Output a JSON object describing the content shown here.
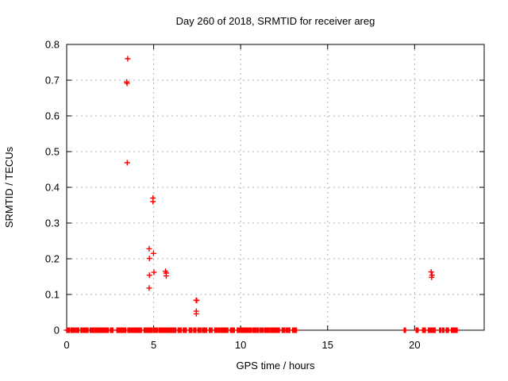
{
  "chart_data": {
    "type": "scatter",
    "title": "Day 260 of 2018, SRMTID for receiver areg",
    "xlabel": "GPS time / hours",
    "ylabel": "SRMTID / TECUs",
    "xlim": [
      0,
      24
    ],
    "ylim": [
      0,
      0.8
    ],
    "xticks": [
      0,
      5,
      10,
      15,
      20
    ],
    "yticks": [
      0,
      0.1,
      0.2,
      0.3,
      0.4,
      0.5,
      0.6,
      0.7,
      0.8
    ],
    "grid": true,
    "legend": "none",
    "marker": "plus",
    "marker_color": "#ff0000",
    "grid_color": "#b0b0b0",
    "border_color": "#000000",
    "series_name": "SRMTID",
    "points": [
      [
        3.51,
        0.76
      ],
      [
        3.45,
        0.695
      ],
      [
        3.47,
        0.691
      ],
      [
        3.48,
        0.469
      ],
      [
        4.96,
        0.37
      ],
      [
        4.96,
        0.36
      ],
      [
        4.74,
        0.228
      ],
      [
        4.99,
        0.215
      ],
      [
        4.76,
        0.201
      ],
      [
        5.02,
        0.162
      ],
      [
        4.76,
        0.154
      ],
      [
        5.68,
        0.165
      ],
      [
        5.72,
        0.16
      ],
      [
        5.72,
        0.152
      ],
      [
        4.74,
        0.118
      ],
      [
        7.44,
        0.084
      ],
      [
        7.48,
        0.083
      ],
      [
        7.45,
        0.053
      ],
      [
        7.45,
        0.046
      ],
      [
        20.95,
        0.163
      ],
      [
        21.0,
        0.154
      ],
      [
        20.98,
        0.148
      ]
    ],
    "zero_value_segments": [
      [
        0.0,
        0.18
      ],
      [
        0.26,
        0.45
      ],
      [
        0.52,
        0.7
      ],
      [
        0.81,
        1.23
      ],
      [
        1.34,
        1.64
      ],
      [
        1.69,
        1.84
      ],
      [
        1.9,
        2.15
      ],
      [
        2.2,
        2.4
      ],
      [
        2.52,
        2.66
      ],
      [
        2.88,
        3.12
      ],
      [
        3.18,
        3.4
      ],
      [
        3.52,
        4.3
      ],
      [
        4.45,
        4.92
      ],
      [
        4.99,
        5.22
      ],
      [
        5.3,
        6.28
      ],
      [
        6.4,
        6.58
      ],
      [
        6.7,
        6.88
      ],
      [
        7.04,
        7.2
      ],
      [
        7.3,
        7.43
      ],
      [
        7.54,
        7.72
      ],
      [
        7.8,
        8.05
      ],
      [
        8.2,
        8.36
      ],
      [
        8.5,
        8.66
      ],
      [
        8.73,
        8.81
      ],
      [
        8.88,
        9.27
      ],
      [
        9.41,
        9.64
      ],
      [
        9.8,
        9.95
      ],
      [
        10.02,
        10.63
      ],
      [
        10.71,
        11.01
      ],
      [
        11.09,
        11.31
      ],
      [
        11.39,
        11.62
      ],
      [
        11.69,
        12.23
      ],
      [
        12.38,
        12.53
      ],
      [
        12.61,
        12.83
      ],
      [
        12.98,
        13.21
      ],
      [
        19.4,
        19.48
      ],
      [
        20.09,
        20.2
      ],
      [
        20.46,
        20.62
      ],
      [
        20.79,
        21.18
      ],
      [
        21.43,
        21.52
      ],
      [
        21.61,
        21.69
      ],
      [
        21.81,
        21.95
      ],
      [
        22.11,
        22.45
      ]
    ],
    "zero_marker_spacing_hours": 0.05
  }
}
